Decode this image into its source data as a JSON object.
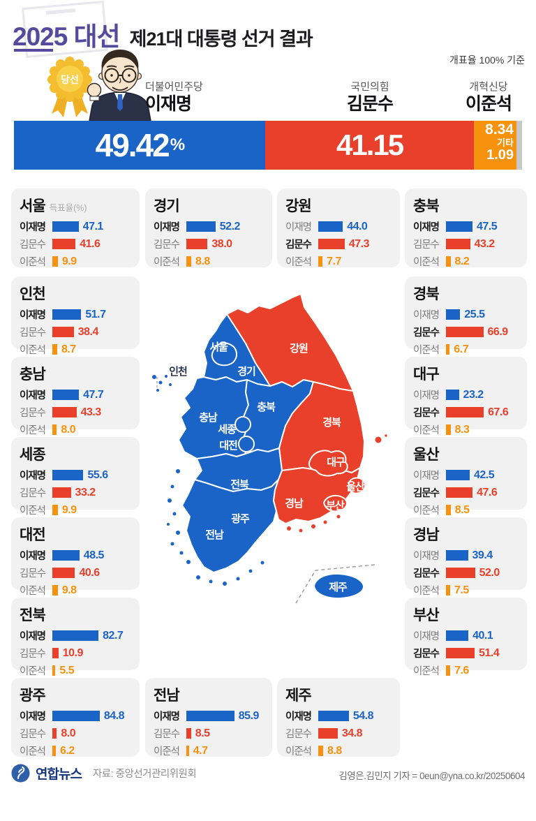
{
  "header": {
    "brand": "2025 대선",
    "title": "제21대 대통령 선거 결과",
    "note": "개표율 100% 기준"
  },
  "colors": {
    "blue": "#1a63c7",
    "red": "#e8402a",
    "orange": "#f6920d",
    "gray": "#c9c9c9",
    "purple": "#554a9e",
    "card_bg": "#f1f1f2"
  },
  "summary": {
    "badge": "당선",
    "winner_party": "더불어민주당",
    "winner_name": "이재명",
    "winner_value": "49.42",
    "winner_unit": "%",
    "second_party": "국민의힘",
    "second_name": "김문수",
    "second_value": "41.15",
    "third_party": "개혁신당",
    "third_name": "이준석",
    "third_value": "8.34",
    "others_label": "기타",
    "others_value": "1.09",
    "shares": [
      49.42,
      41.15,
      8.34,
      1.09
    ]
  },
  "cards": [
    {
      "region": "서울",
      "note": "득표율(%)",
      "winner": 0,
      "rows": [
        {
          "name": "이재명",
          "value": 47.1
        },
        {
          "name": "김문수",
          "value": 41.6
        },
        {
          "name": "이준석",
          "value": 9.9
        }
      ]
    },
    {
      "region": "경기",
      "winner": 0,
      "rows": [
        {
          "name": "이재명",
          "value": 52.2
        },
        {
          "name": "김문수",
          "value": 38.0
        },
        {
          "name": "이준석",
          "value": 8.8
        }
      ]
    },
    {
      "region": "강원",
      "winner": 1,
      "rows": [
        {
          "name": "이재명",
          "value": 44.0
        },
        {
          "name": "김문수",
          "value": 47.3
        },
        {
          "name": "이준석",
          "value": 7.7
        }
      ]
    },
    {
      "region": "충북",
      "winner": 0,
      "rows": [
        {
          "name": "이재명",
          "value": 47.5
        },
        {
          "name": "김문수",
          "value": 43.2
        },
        {
          "name": "이준석",
          "value": 8.2
        }
      ]
    },
    {
      "region": "인천",
      "winner": 0,
      "rows": [
        {
          "name": "이재명",
          "value": 51.7
        },
        {
          "name": "김문수",
          "value": 38.4
        },
        {
          "name": "이준석",
          "value": 8.7
        }
      ]
    },
    {
      "region": "경북",
      "winner": 1,
      "rows": [
        {
          "name": "이재명",
          "value": 25.5
        },
        {
          "name": "김문수",
          "value": 66.9
        },
        {
          "name": "이준석",
          "value": 6.7
        }
      ]
    },
    {
      "region": "충남",
      "winner": 0,
      "rows": [
        {
          "name": "이재명",
          "value": 47.7
        },
        {
          "name": "김문수",
          "value": 43.3
        },
        {
          "name": "이준석",
          "value": 8.0
        }
      ]
    },
    {
      "region": "대구",
      "winner": 1,
      "rows": [
        {
          "name": "이재명",
          "value": 23.2
        },
        {
          "name": "김문수",
          "value": 67.6
        },
        {
          "name": "이준석",
          "value": 8.3
        }
      ]
    },
    {
      "region": "세종",
      "winner": 0,
      "rows": [
        {
          "name": "이재명",
          "value": 55.6
        },
        {
          "name": "김문수",
          "value": 33.2
        },
        {
          "name": "이준석",
          "value": 9.9
        }
      ]
    },
    {
      "region": "울산",
      "winner": 1,
      "rows": [
        {
          "name": "이재명",
          "value": 42.5
        },
        {
          "name": "김문수",
          "value": 47.6
        },
        {
          "name": "이준석",
          "value": 8.5
        }
      ]
    },
    {
      "region": "대전",
      "winner": 0,
      "rows": [
        {
          "name": "이재명",
          "value": 48.5
        },
        {
          "name": "김문수",
          "value": 40.6
        },
        {
          "name": "이준석",
          "value": 9.8
        }
      ]
    },
    {
      "region": "경남",
      "winner": 1,
      "rows": [
        {
          "name": "이재명",
          "value": 39.4
        },
        {
          "name": "김문수",
          "value": 52.0
        },
        {
          "name": "이준석",
          "value": 7.5
        }
      ]
    },
    {
      "region": "전북",
      "winner": 0,
      "rows": [
        {
          "name": "이재명",
          "value": 82.7
        },
        {
          "name": "김문수",
          "value": 10.9
        },
        {
          "name": "이준석",
          "value": 5.5
        }
      ]
    },
    {
      "region": "부산",
      "winner": 1,
      "rows": [
        {
          "name": "이재명",
          "value": 40.1
        },
        {
          "name": "김문수",
          "value": 51.4
        },
        {
          "name": "이준석",
          "value": 7.6
        }
      ]
    },
    {
      "region": "광주",
      "winner": 0,
      "rows": [
        {
          "name": "이재명",
          "value": 84.8
        },
        {
          "name": "김문수",
          "value": 8.0
        },
        {
          "name": "이준석",
          "value": 6.2
        }
      ]
    },
    {
      "region": "전남",
      "winner": 0,
      "rows": [
        {
          "name": "이재명",
          "value": 85.9
        },
        {
          "name": "김문수",
          "value": 8.5
        },
        {
          "name": "이준석",
          "value": 4.7
        }
      ]
    },
    {
      "region": "제주",
      "winner": 0,
      "rows": [
        {
          "name": "이재명",
          "value": 54.8
        },
        {
          "name": "김문수",
          "value": 34.8
        },
        {
          "name": "이준석",
          "value": 8.8
        }
      ]
    }
  ],
  "map": {
    "labels": [
      "서울",
      "경기",
      "강원",
      "충북",
      "충남",
      "세종",
      "대전",
      "경북",
      "대구",
      "전북",
      "경남",
      "부산",
      "울산",
      "광주",
      "전남",
      "제주",
      "인천"
    ],
    "blue_regions": [
      "서울",
      "인천",
      "경기",
      "충북",
      "충남",
      "세종",
      "대전",
      "전북",
      "광주",
      "전남",
      "제주"
    ],
    "red_regions": [
      "강원",
      "경북",
      "대구",
      "울산",
      "경남",
      "부산"
    ]
  },
  "footer": {
    "agency": "연합뉴스",
    "source": "자료: 중앙선거관리위원회",
    "credit": "김영은.김민지 기자 = 0eun@yna.co.kr/20250604"
  },
  "chart_data": {
    "type": "bar",
    "title": "제21대 대통령 선거 결과",
    "subtitle": "2025 대선",
    "note": "개표율 100% 기준",
    "unit": "%",
    "national": {
      "categories": [
        "이재명",
        "김문수",
        "이준석",
        "기타"
      ],
      "parties": [
        "더불어민주당",
        "국민의힘",
        "개혁신당",
        ""
      ],
      "values": [
        49.42,
        41.15,
        8.34,
        1.09
      ]
    },
    "regional": {
      "categories": [
        "이재명",
        "김문수",
        "이준석"
      ],
      "series": [
        {
          "name": "서울",
          "values": [
            47.1,
            41.6,
            9.9
          ]
        },
        {
          "name": "경기",
          "values": [
            52.2,
            38.0,
            8.8
          ]
        },
        {
          "name": "강원",
          "values": [
            44.0,
            47.3,
            7.7
          ]
        },
        {
          "name": "충북",
          "values": [
            47.5,
            43.2,
            8.2
          ]
        },
        {
          "name": "인천",
          "values": [
            51.7,
            38.4,
            8.7
          ]
        },
        {
          "name": "경북",
          "values": [
            25.5,
            66.9,
            6.7
          ]
        },
        {
          "name": "충남",
          "values": [
            47.7,
            43.3,
            8.0
          ]
        },
        {
          "name": "대구",
          "values": [
            23.2,
            67.6,
            8.3
          ]
        },
        {
          "name": "세종",
          "values": [
            55.6,
            33.2,
            9.9
          ]
        },
        {
          "name": "울산",
          "values": [
            42.5,
            47.6,
            8.5
          ]
        },
        {
          "name": "대전",
          "values": [
            48.5,
            40.6,
            9.8
          ]
        },
        {
          "name": "경남",
          "values": [
            39.4,
            52.0,
            7.5
          ]
        },
        {
          "name": "전북",
          "values": [
            82.7,
            10.9,
            5.5
          ]
        },
        {
          "name": "부산",
          "values": [
            40.1,
            51.4,
            7.6
          ]
        },
        {
          "name": "광주",
          "values": [
            84.8,
            8.0,
            6.2
          ]
        },
        {
          "name": "전남",
          "values": [
            85.9,
            8.5,
            4.7
          ]
        },
        {
          "name": "제주",
          "values": [
            54.8,
            34.8,
            8.8
          ]
        }
      ]
    }
  }
}
